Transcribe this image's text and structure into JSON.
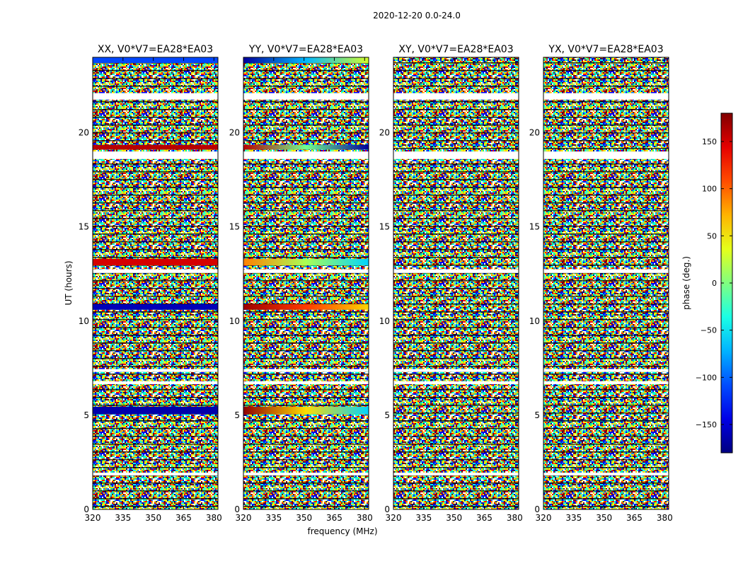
{
  "suptitle": "2020-12-20 0.0-24.0",
  "chart_data": {
    "type": "heatmap",
    "xlabel": "frequency (MHz)",
    "ylabel": "UT (hours)",
    "xlim": [
      320,
      382
    ],
    "ylim": [
      0,
      24
    ],
    "xticks": [
      320,
      335,
      350,
      365,
      380
    ],
    "yticks": [
      0,
      5,
      10,
      15,
      20
    ],
    "grid": false,
    "colorbar": {
      "label": "phase (deg.)",
      "range": [
        -180,
        180
      ],
      "ticks": [
        -150,
        -100,
        -50,
        0,
        50,
        100,
        150
      ],
      "colormap": "jet"
    },
    "flagged_bands_hours": [
      [
        21.75,
        22.1
      ],
      [
        18.6,
        19.0
      ],
      [
        12.55,
        12.75
      ],
      [
        7.3,
        7.45
      ],
      [
        6.65,
        6.8
      ],
      [
        1.8,
        1.95
      ]
    ],
    "panels": [
      {
        "title": "XX, V0*V7=EA28*EA03",
        "coherent_bands": [
          {
            "t_start": 23.7,
            "t_end": 24.0,
            "phase_deg": -110
          },
          {
            "t_start": 19.1,
            "t_end": 19.35,
            "phase_deg": 160
          },
          {
            "t_start": 12.95,
            "t_end": 13.3,
            "phase_deg": 150
          },
          {
            "t_start": 10.6,
            "t_end": 10.9,
            "phase_deg": -160
          },
          {
            "t_start": 5.05,
            "t_end": 5.45,
            "phase_deg": -165
          }
        ]
      },
      {
        "title": "YY, V0*V7=EA28*EA03",
        "coherent_bands": [
          {
            "t_start": 23.7,
            "t_end": 24.0,
            "phase_start_deg": -170,
            "phase_end_deg": 30
          },
          {
            "t_start": 19.1,
            "t_end": 19.35,
            "phase_start_deg": 160,
            "phase_end_deg": -170
          },
          {
            "t_start": 12.95,
            "t_end": 13.3,
            "phase_start_deg": 90,
            "phase_end_deg": -60
          },
          {
            "t_start": 10.6,
            "t_end": 10.9,
            "phase_start_deg": 170,
            "phase_end_deg": 60
          },
          {
            "t_start": 5.05,
            "t_end": 5.45,
            "phase_start_deg": 175,
            "phase_end_deg": -60
          }
        ]
      },
      {
        "title": "XY, V0*V7=EA28*EA03",
        "coherent_bands": []
      },
      {
        "title": "YX, V0*V7=EA28*EA03",
        "coherent_bands": []
      }
    ]
  }
}
